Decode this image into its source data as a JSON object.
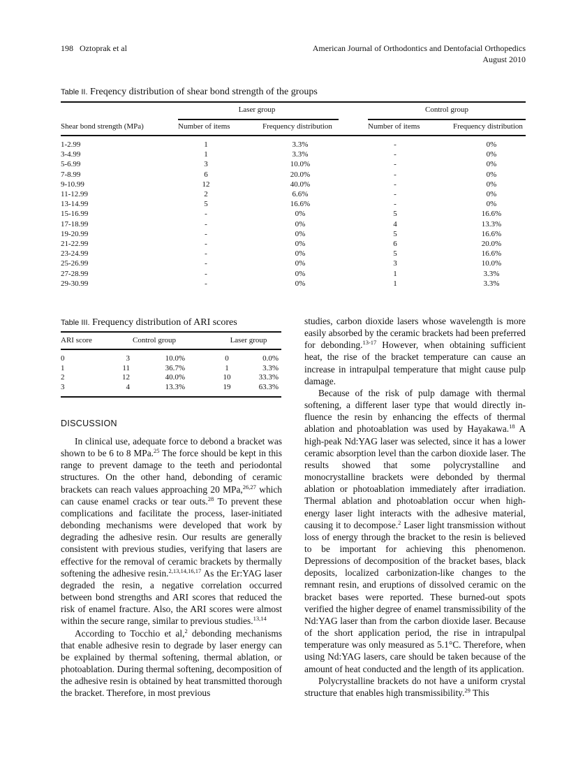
{
  "header": {
    "page_author": "198   Oztoprak et al",
    "journal": "American Journal of Orthodontics and Dentofacial Orthopedics",
    "date": "August 2010"
  },
  "table2": {
    "label": "Table II.",
    "title": "Freqency distribution of shear bond strength of the groups",
    "group_laser": "Laser group",
    "group_control": "Control group",
    "col_strength": "Shear bond strength (MPa)",
    "col_num": "Number of items",
    "col_freq": "Frequency distribution",
    "rows": [
      [
        "1-2.99",
        "1",
        "3.3%",
        "-",
        "0%"
      ],
      [
        "3-4.99",
        "1",
        "3.3%",
        "-",
        "0%"
      ],
      [
        "5-6.99",
        "3",
        "10.0%",
        "-",
        "0%"
      ],
      [
        "7-8.99",
        "6",
        "20.0%",
        "-",
        "0%"
      ],
      [
        "9-10.99",
        "12",
        "40.0%",
        "-",
        "0%"
      ],
      [
        "11-12.99",
        "2",
        "6.6%",
        "-",
        "0%"
      ],
      [
        "13-14.99",
        "5",
        "16.6%",
        "-",
        "0%"
      ],
      [
        "15-16.99",
        "-",
        "0%",
        "5",
        "16.6%"
      ],
      [
        "17-18.99",
        "-",
        "0%",
        "4",
        "13.3%"
      ],
      [
        "19-20.99",
        "-",
        "0%",
        "5",
        "16.6%"
      ],
      [
        "21-22.99",
        "-",
        "0%",
        "6",
        "20.0%"
      ],
      [
        "23-24.99",
        "-",
        "0%",
        "5",
        "16.6%"
      ],
      [
        "25-26.99",
        "-",
        "0%",
        "3",
        "10.0%"
      ],
      [
        "27-28.99",
        "-",
        "0%",
        "1",
        "3.3%"
      ],
      [
        "29-30.99",
        "-",
        "0%",
        "1",
        "3.3%"
      ]
    ]
  },
  "table3": {
    "label": "Table III.",
    "title": "Frequency distribution of ARI scores",
    "col_ari": "ARI score",
    "col_control": "Control group",
    "col_laser": "Laser group",
    "rows": [
      [
        "0",
        "3",
        "10.0%",
        "0",
        "0.0%"
      ],
      [
        "1",
        "11",
        "36.7%",
        "1",
        "3.3%"
      ],
      [
        "2",
        "12",
        "40.0%",
        "10",
        "33.3%"
      ],
      [
        "3",
        "4",
        "13.3%",
        "19",
        "63.3%"
      ]
    ]
  },
  "discussion_heading": "DISCUSSION",
  "left_column": [
    [
      {
        "t": "In clinical use, adequate force to debond a bracket was shown to be 6 to 8 MPa."
      },
      {
        "s": "25"
      },
      {
        "t": " The force should be kept in this range to prevent damage to the teeth and periodontal structures. On the other hand, debonding of ceramic brackets can reach values approaching 20 MPa,"
      },
      {
        "s": "26,27"
      },
      {
        "t": " which can cause enamel cracks or tear outs."
      },
      {
        "s": "28"
      },
      {
        "t": " To prevent these complications and facilitate the process, laser-initiated debonding mechanisms were developed that work by degrading the adhesive resin. Our results are generally consistent with previous studies, verifying that lasers are effective for the removal of ceramic brackets by thermally softening the adhesive resin."
      },
      {
        "s": "2,13,14,16,17"
      },
      {
        "t": " As the Er:YAG laser degraded the resin, a negative correlation occurred between bond strengths and ARI scores that reduced the risk of enamel fracture. Also, the ARI scores were almost within the secure range, similar to previous studies."
      },
      {
        "s": "13,14"
      }
    ],
    [
      {
        "t": "According to Tocchio et al,"
      },
      {
        "s": "2"
      },
      {
        "t": " debonding mechanisms that enable adhesive resin to degrade by laser energy can be explained by thermal softening, thermal ablation, or photoablation. During thermal softening, decomposi­tion of the adhesive resin is obtained by heat transmitted thorough the bracket. Therefore, in most previous"
      }
    ]
  ],
  "right_column": [
    [
      {
        "t": "studies, carbon dioxide lasers whose wavelength is more easily absorbed by the ceramic brackets had been preferred for debonding."
      },
      {
        "s": "13-17"
      },
      {
        "t": " However, when obtaining sufficient heat, the rise of the bracket temperature can cause an increase in intrapulpal temperature that might cause pulp damage."
      }
    ],
    [
      {
        "t": "Because of the risk of pulp damage with thermal softening, a different laser type that would directly in­fluence the resin by enhancing the effects of thermal ablation and photoablation was used by Hayakawa."
      },
      {
        "s": "18"
      },
      {
        "t": " A high-peak Nd:YAG laser was selected, since it has a lower ceramic absorption level than the carbon diox­ide laser. The results showed that some polycrystalline and monocrystalline brackets were debonded by ther­mal ablation or photoablation immediately after irradi­ation. Thermal ablation and photoablation occur when high-energy laser light interacts with the adhesive ma­terial, causing it to decompose."
      },
      {
        "s": "2"
      },
      {
        "t": " Laser light transmis­sion without loss of energy through the bracket to the resin is believed to be important for achieving this phenomenon. Depressions of decomposition of the bracket bases, black deposits, localized carbonization-like changes to the remnant resin, and eruptions of dissolved ceramic on the bracket bases were reported. These burned-out spots verified the higher degree of enamel transmissibility of the Nd:YAG laser than from the carbon dioxide laser. Because of the short application period, the rise in intrapulpal temperature was only measured as 5.1°C. Therefore, when using Nd:YAG lasers, care should be taken because of the amount of heat conducted and the length of its application."
      }
    ],
    [
      {
        "t": "Polycrystalline brackets do not have a uniform crys­tal structure that enables high transmissibility."
      },
      {
        "s": "29"
      },
      {
        "t": " This"
      }
    ]
  ]
}
